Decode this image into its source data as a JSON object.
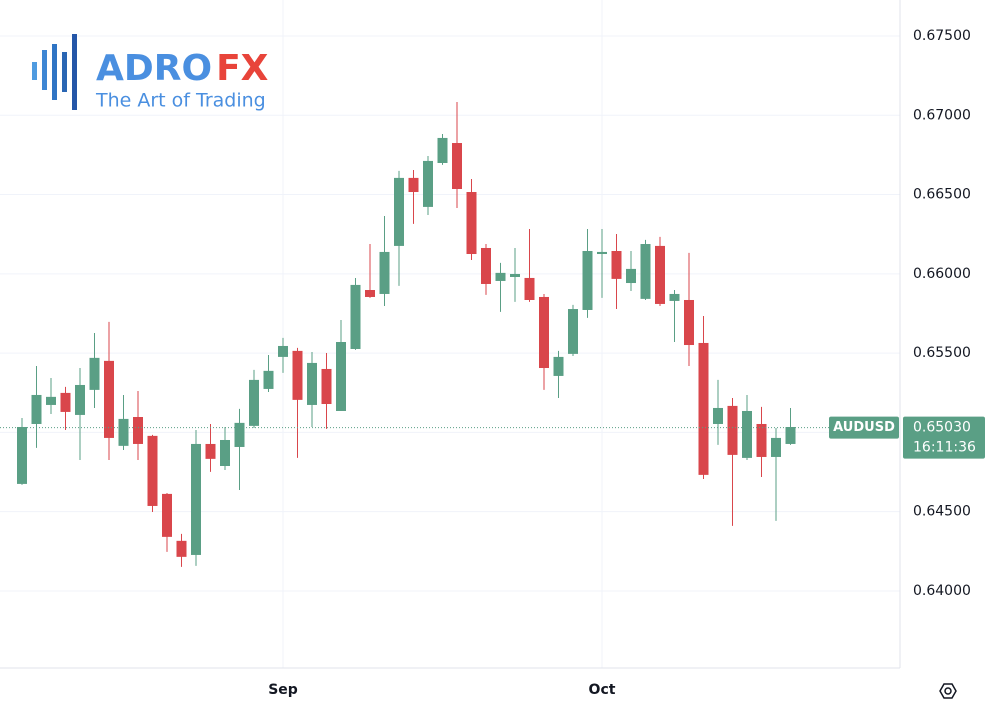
{
  "logo": {
    "brand_left": "ADRO",
    "brand_right": "FX",
    "tagline": "The Art of Trading"
  },
  "chart_data": {
    "type": "candlestick",
    "symbol": "AUDUSD",
    "countdown": "16:11:36",
    "up_color": "#5a9f85",
    "down_color": "#d9464b",
    "categories": [
      null,
      null,
      null,
      null,
      null,
      null,
      null,
      null,
      null,
      null,
      null,
      null,
      null,
      null,
      null,
      null,
      null,
      null,
      "Sep",
      null,
      null,
      null,
      null,
      null,
      null,
      null,
      null,
      null,
      null,
      null,
      null,
      null,
      null,
      null,
      null,
      null,
      null,
      null,
      null,
      null,
      "Oct",
      null,
      null,
      null,
      null,
      null,
      null,
      null,
      null,
      null,
      null,
      null,
      null,
      null
    ],
    "open": [
      0.64675,
      0.65053,
      0.65173,
      0.65249,
      0.6511,
      0.65268,
      0.65451,
      0.64915,
      0.65097,
      0.64978,
      0.64612,
      0.64316,
      0.64227,
      0.64927,
      0.64788,
      0.64908,
      0.65041,
      0.65274,
      0.65476,
      0.65514,
      0.65173,
      0.654,
      0.65135,
      0.65526,
      0.65898,
      0.65873,
      0.66176,
      0.66605,
      0.66422,
      0.66699,
      0.66825,
      0.66516,
      0.66163,
      0.65955,
      0.6598,
      0.65974,
      0.65854,
      0.65356,
      0.65495,
      0.65772,
      0.66125,
      0.66144,
      0.65942,
      0.65842,
      0.66176,
      0.65829,
      0.65835,
      0.65564,
      0.65053,
      0.65167,
      0.64839,
      0.65053,
      0.64845,
      0.64927
    ],
    "high": [
      0.65091,
      0.65419,
      0.65343,
      0.65287,
      0.65406,
      0.65627,
      0.65697,
      0.65236,
      0.65261,
      0.64984,
      0.64618,
      0.6436,
      0.65015,
      0.65053,
      0.65034,
      0.65148,
      0.65394,
      0.65488,
      0.65596,
      0.65533,
      0.65507,
      0.65501,
      0.65709,
      0.65974,
      0.66188,
      0.66365,
      0.66649,
      0.66655,
      0.66743,
      0.66882,
      0.67084,
      0.66598,
      0.66188,
      0.66069,
      0.66163,
      0.66283,
      0.65873,
      0.65514,
      0.65804,
      0.66283,
      0.66283,
      0.66251,
      0.66144,
      0.66214,
      0.66233,
      0.65898,
      0.66132,
      0.65734,
      0.65331,
      0.65217,
      0.65236,
      0.65161,
      0.65028,
      0.65154
    ],
    "low": [
      0.64669,
      0.64902,
      0.65116,
      0.65015,
      0.64826,
      0.65154,
      0.64826,
      0.64889,
      0.64826,
      0.64498,
      0.64246,
      0.64152,
      0.64158,
      0.64751,
      0.64763,
      0.64637,
      0.65028,
      0.65255,
      0.65375,
      0.64839,
      0.65034,
      0.65022,
      0.65135,
      0.6552,
      0.65848,
      0.65797,
      0.65924,
      0.66315,
      0.66371,
      0.66687,
      0.66415,
      0.66087,
      0.65867,
      0.6576,
      0.65823,
      0.65823,
      0.65268,
      0.65217,
      0.65482,
      0.65722,
      0.65848,
      0.65778,
      0.65892,
      0.65835,
      0.65797,
      0.6557,
      0.65419,
      0.64706,
      0.64921,
      0.6441,
      0.64826,
      0.64719,
      0.64442,
      0.64921
    ],
    "close": [
      0.65034,
      0.65236,
      0.65224,
      0.65129,
      0.65299,
      0.6547,
      0.64965,
      0.65085,
      0.64927,
      0.64536,
      0.64341,
      0.64215,
      0.64927,
      0.64833,
      0.64952,
      0.6506,
      0.65331,
      0.65388,
      0.65545,
      0.65205,
      0.65438,
      0.65179,
      0.6557,
      0.6593,
      0.65854,
      0.66138,
      0.66605,
      0.66516,
      0.66712,
      0.66857,
      0.66535,
      0.66125,
      0.65936,
      0.66006,
      0.65999,
      0.65835,
      0.65406,
      0.65476,
      0.65778,
      0.66144,
      0.66138,
      0.65968,
      0.66031,
      0.66188,
      0.6581,
      0.65873,
      0.65551,
      0.64732,
      0.65154,
      0.64858,
      0.65135,
      0.64845,
      0.64965,
      0.65034
    ],
    "current_price": {
      "value": 0.6503,
      "label": "0.65030"
    },
    "ylim": [
      0.63514,
      0.67727
    ],
    "yticks": [
      {
        "value": 0.64,
        "label": "0.64000"
      },
      {
        "value": 0.645,
        "label": "0.64500"
      },
      {
        "value": 0.65,
        "label": "0.65000"
      },
      {
        "value": 0.655,
        "label": "0.65500"
      },
      {
        "value": 0.66,
        "label": "0.66000"
      },
      {
        "value": 0.665,
        "label": "0.66500"
      },
      {
        "value": 0.67,
        "label": "0.67000"
      },
      {
        "value": 0.675,
        "label": "0.67500"
      }
    ],
    "grid": true
  }
}
